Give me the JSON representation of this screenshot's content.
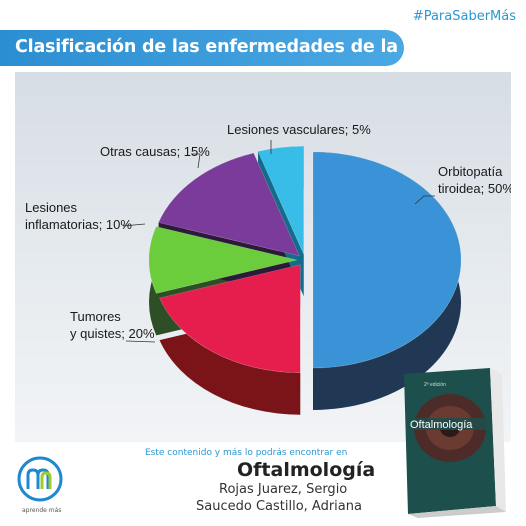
{
  "hashtag": "#ParaSaberMás",
  "title": "Clasificación de las enfermedades de la órbita",
  "chart_data": {
    "type": "pie",
    "title": "Clasificación de las enfermedades de la órbita",
    "categories": [
      "Orbitopatía tiroidea",
      "Tumores y quistes",
      "Lesiones inflamatorias",
      "Otras causas",
      "Lesiones vasculares"
    ],
    "values": [
      50,
      20,
      10,
      15,
      5
    ],
    "series": [
      {
        "name": "Orbitopatía tiroidea",
        "value": 50,
        "label_lines": [
          "Orbitopatía",
          "tiroidea; 50%"
        ],
        "color": "#3a93d6",
        "side_color": "#203853"
      },
      {
        "name": "Tumores y quistes",
        "value": 20,
        "label_lines": [
          "Tumores",
          "y quistes; 20%"
        ],
        "color": "#e51e4e",
        "side_color": "#7a1418"
      },
      {
        "name": "Lesiones inflamatorias",
        "value": 10,
        "label_lines": [
          "Lesiones",
          "inflamatorias; 10%"
        ],
        "color": "#6bcc3c",
        "side_color": "#2e4e26"
      },
      {
        "name": "Otras causas",
        "value": 15,
        "label_lines": [
          "Otras causas; 15%"
        ],
        "color": "#7a3b9a",
        "side_color": "#2b1b39"
      },
      {
        "name": "Lesiones vasculares",
        "value": 5,
        "label_lines": [
          "Lesiones vasculares; 5%"
        ],
        "color": "#38bde8",
        "side_color": "#146b8a"
      }
    ],
    "legend": "none",
    "grid": false
  },
  "footer": {
    "intro": "Este contenido y más lo podrás encontrar en",
    "book_title": "Oftalmología",
    "author1": "Rojas Juarez, Sergio",
    "author2": "Saucedo Castillo, Adriana"
  },
  "logo": {
    "text": "aprende más",
    "icon": "mm-logo-icon"
  },
  "book_cover": {
    "title": "Oftalmología",
    "edition": "2ª edición"
  }
}
